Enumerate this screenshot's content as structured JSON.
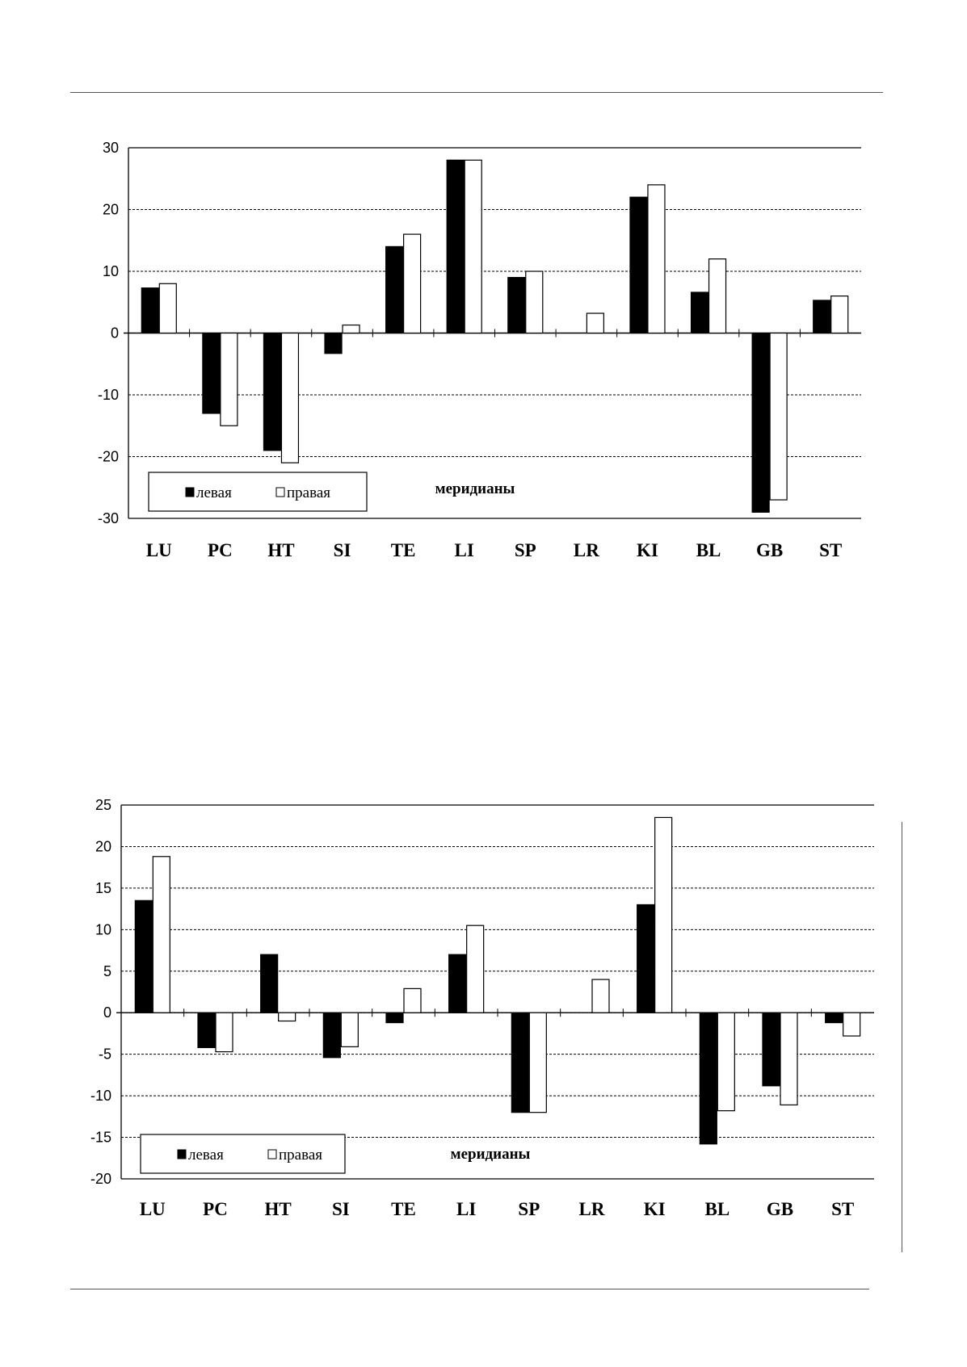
{
  "chart_data": [
    {
      "type": "bar",
      "categories": [
        "LU",
        "PC",
        "HT",
        "SI",
        "TE",
        "LI",
        "SP",
        "LR",
        "KI",
        "BL",
        "GB",
        "ST"
      ],
      "series": [
        {
          "name": "левая",
          "color": "#000000",
          "values": [
            7.3,
            -13,
            -19,
            -3.3,
            14,
            28,
            9,
            0,
            22,
            6.6,
            -29,
            5.3
          ]
        },
        {
          "name": "правая",
          "color": "#ffffff",
          "values": [
            8,
            -15,
            -21,
            1.3,
            16,
            28,
            10,
            3.2,
            24,
            12,
            -27,
            6
          ]
        }
      ],
      "xlabel": "меридианы",
      "ylim": [
        -30,
        30
      ],
      "yticks": [
        30,
        20,
        10,
        0,
        -10,
        -20,
        -30
      ],
      "grid": "dashed horizontal",
      "legend_position": "bottom-left"
    },
    {
      "type": "bar",
      "categories": [
        "LU",
        "PC",
        "HT",
        "SI",
        "TE",
        "LI",
        "SP",
        "LR",
        "KI",
        "BL",
        "GB",
        "ST"
      ],
      "series": [
        {
          "name": "левая",
          "color": "#000000",
          "values": [
            13.5,
            -4.2,
            7,
            -5.4,
            -1.2,
            7,
            -12,
            0,
            13,
            -15.8,
            -8.8,
            -1.2
          ]
        },
        {
          "name": "правая",
          "color": "#ffffff",
          "values": [
            18.8,
            -4.7,
            -1,
            -4.1,
            2.9,
            10.5,
            -12,
            4,
            23.5,
            -11.8,
            -11.1,
            -2.8
          ]
        }
      ],
      "xlabel": "меридианы",
      "ylim": [
        -20,
        25
      ],
      "yticks": [
        25,
        20,
        15,
        10,
        5,
        0,
        -5,
        -10,
        -15,
        -20
      ],
      "grid": "dashed horizontal",
      "legend_position": "bottom-left"
    }
  ]
}
